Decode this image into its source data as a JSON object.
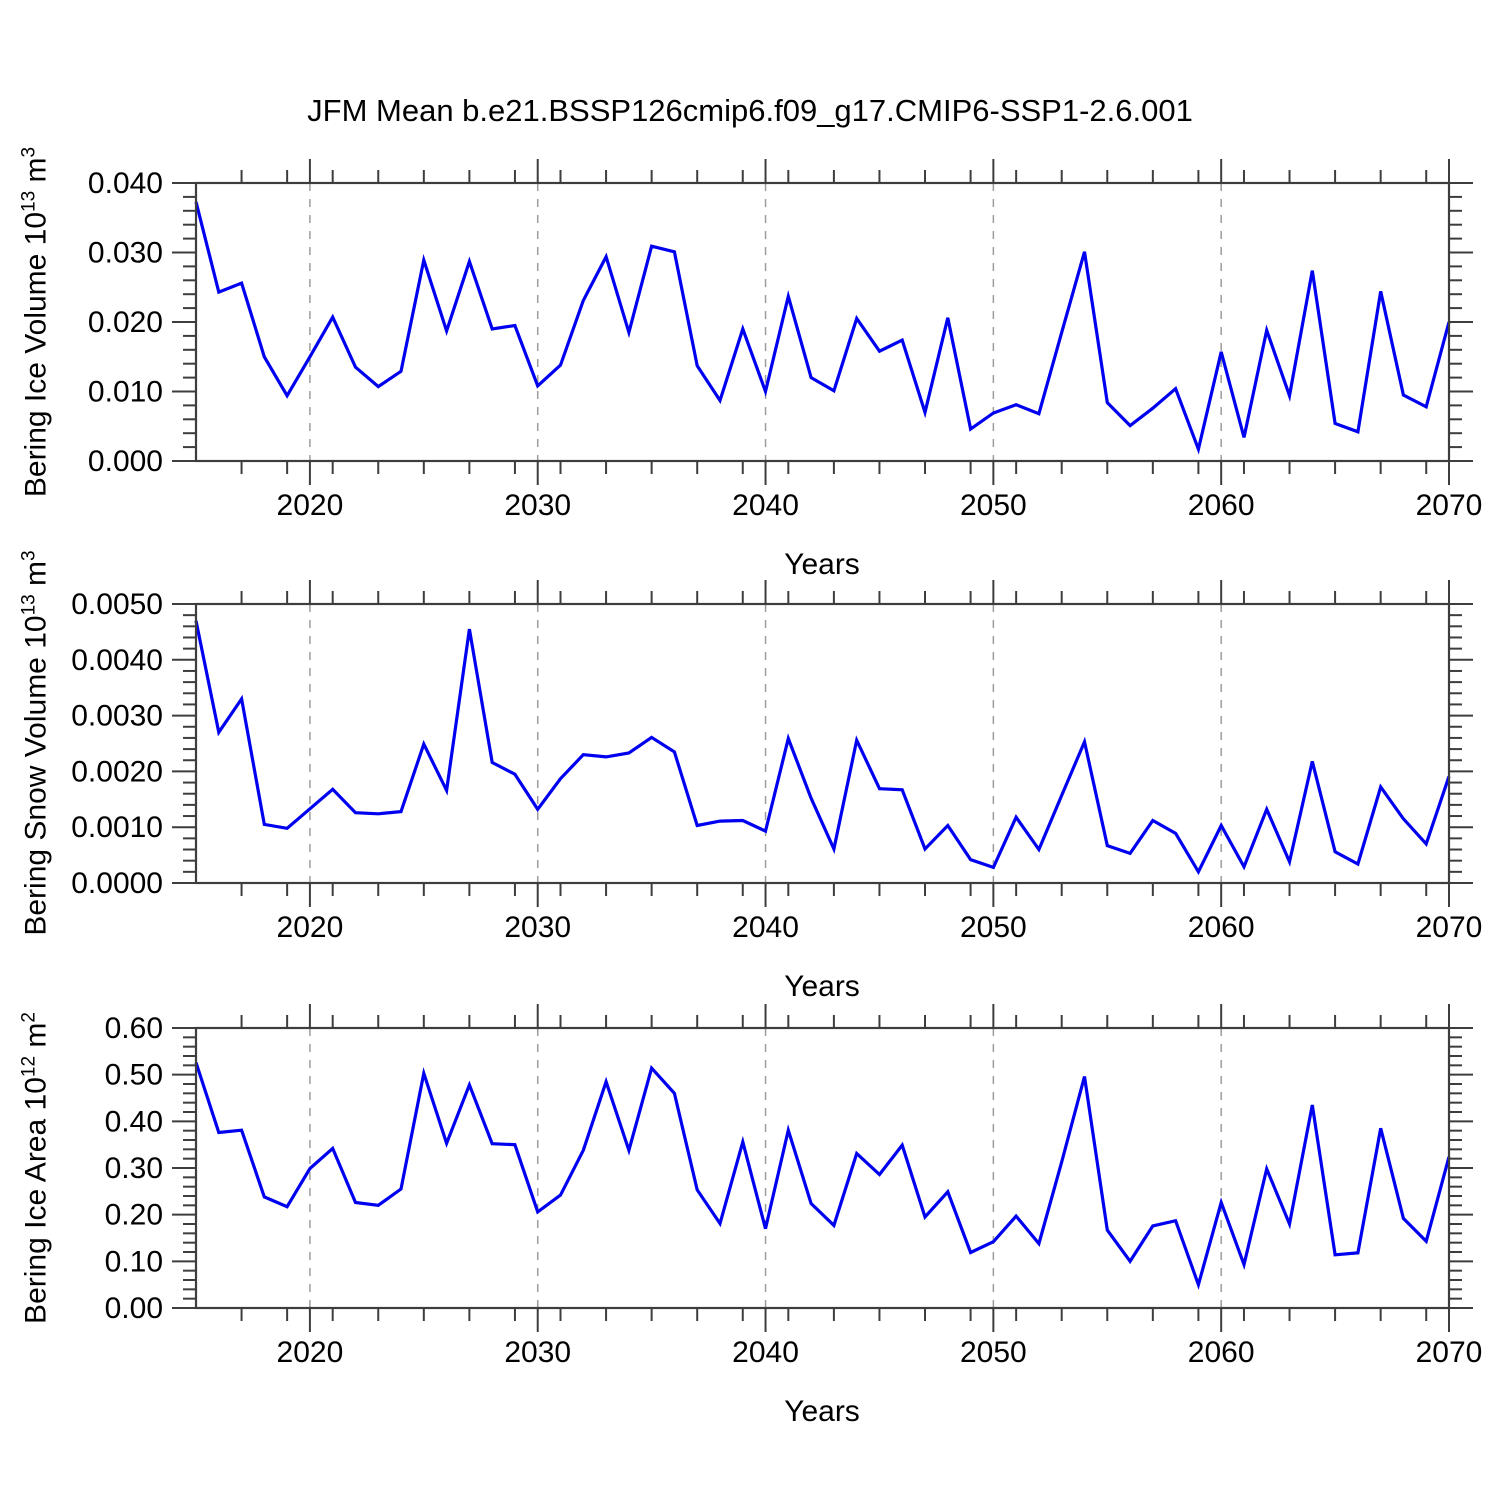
{
  "title": "JFM Mean b.e21.BSSP126cmip6.f09_g17.CMIP6-SSP1-2.6.001",
  "colors": {
    "line": "#0000F0",
    "axis": "#3d3d3d",
    "grid": "#9c9c9c",
    "background": "#ffffff",
    "text": "#000000"
  },
  "chart_data": [
    {
      "type": "line",
      "xlabel": "Years",
      "ylabel": "Bering Ice Volume 10^13 m^3",
      "ylabel_text": "Bering Ice Volume 10",
      "ylabel_exp": "13",
      "ylabel_unit": "m",
      "ylabel_unit_exp": "3",
      "xlim": [
        2015,
        2070
      ],
      "ylim": [
        0,
        0.04
      ],
      "yticks": [
        0.0,
        0.01,
        0.02,
        0.03,
        0.04
      ],
      "ytick_labels": [
        "0.000",
        "0.010",
        "0.020",
        "0.030",
        "0.040"
      ],
      "y_minor_step": 0.002,
      "xticks": [
        2020,
        2030,
        2040,
        2050,
        2060,
        2070
      ],
      "xtick_labels": [
        "2020",
        "2030",
        "2040",
        "2050",
        "2060",
        "2070"
      ],
      "x_minor_step": 2,
      "gridlines_x": [
        2020,
        2030,
        2040,
        2050,
        2060
      ],
      "grid": "dashed-vertical",
      "legend": "none",
      "x": [
        2015,
        2016,
        2017,
        2018,
        2019,
        2020,
        2021,
        2022,
        2023,
        2024,
        2025,
        2026,
        2027,
        2028,
        2029,
        2030,
        2031,
        2032,
        2033,
        2034,
        2035,
        2036,
        2037,
        2038,
        2039,
        2040,
        2041,
        2042,
        2043,
        2044,
        2045,
        2046,
        2047,
        2048,
        2049,
        2050,
        2051,
        2052,
        2053,
        2054,
        2055,
        2056,
        2057,
        2058,
        2059,
        2060,
        2061,
        2062,
        2063,
        2064,
        2065,
        2066,
        2067,
        2068,
        2069,
        2070
      ],
      "values": [
        0.0373,
        0.0243,
        0.0256,
        0.015,
        0.0094,
        0.015,
        0.0207,
        0.0135,
        0.0107,
        0.0129,
        0.0289,
        0.0187,
        0.0287,
        0.019,
        0.0195,
        0.0108,
        0.0138,
        0.0231,
        0.0294,
        0.0185,
        0.0309,
        0.0301,
        0.0137,
        0.0087,
        0.019,
        0.01,
        0.0237,
        0.012,
        0.0101,
        0.0205,
        0.0158,
        0.0174,
        0.007,
        0.0206,
        0.0046,
        0.0069,
        0.0081,
        0.0068,
        0.0185,
        0.0301,
        0.0084,
        0.0051,
        0.0076,
        0.0104,
        0.0017,
        0.0157,
        0.0034,
        0.0188,
        0.0094,
        0.0274,
        0.0054,
        0.0042,
        0.0244,
        0.0095,
        0.0078,
        0.02
      ]
    },
    {
      "type": "line",
      "xlabel": "Years",
      "ylabel": "Bering Snow Volume 10^13 m^3",
      "ylabel_text": "Bering Snow Volume 10",
      "ylabel_exp": "13",
      "ylabel_unit": "m",
      "ylabel_unit_exp": "3",
      "xlim": [
        2015,
        2070
      ],
      "ylim": [
        0,
        0.005
      ],
      "yticks": [
        0.0,
        0.001,
        0.002,
        0.003,
        0.004,
        0.005
      ],
      "ytick_labels": [
        "0.0000",
        "0.0010",
        "0.0020",
        "0.0030",
        "0.0040",
        "0.0050"
      ],
      "y_minor_step": 0.0002,
      "xticks": [
        2020,
        2030,
        2040,
        2050,
        2060,
        2070
      ],
      "xtick_labels": [
        "2020",
        "2030",
        "2040",
        "2050",
        "2060",
        "2070"
      ],
      "x_minor_step": 2,
      "gridlines_x": [
        2020,
        2030,
        2040,
        2050,
        2060
      ],
      "grid": "dashed-vertical",
      "legend": "none",
      "x": [
        2015,
        2016,
        2017,
        2018,
        2019,
        2020,
        2021,
        2022,
        2023,
        2024,
        2025,
        2026,
        2027,
        2028,
        2029,
        2030,
        2031,
        2032,
        2033,
        2034,
        2035,
        2036,
        2037,
        2038,
        2039,
        2040,
        2041,
        2042,
        2043,
        2044,
        2045,
        2046,
        2047,
        2048,
        2049,
        2050,
        2051,
        2052,
        2053,
        2054,
        2055,
        2056,
        2057,
        2058,
        2059,
        2060,
        2061,
        2062,
        2063,
        2064,
        2065,
        2066,
        2067,
        2068,
        2069,
        2070
      ],
      "values": [
        0.0047,
        0.0027,
        0.0033,
        0.00105,
        0.00098,
        0.00133,
        0.00168,
        0.00126,
        0.00124,
        0.00128,
        0.00249,
        0.00166,
        0.00455,
        0.00216,
        0.00195,
        0.00132,
        0.00187,
        0.0023,
        0.00226,
        0.00233,
        0.00261,
        0.00235,
        0.00103,
        0.00111,
        0.00112,
        0.00093,
        0.00259,
        0.00152,
        0.00061,
        0.00256,
        0.00169,
        0.00167,
        0.00061,
        0.00103,
        0.00042,
        0.00028,
        0.00118,
        0.0006,
        0.00157,
        0.00253,
        0.00067,
        0.00053,
        0.00112,
        0.00089,
        0.0002,
        0.00103,
        0.00029,
        0.00132,
        0.00038,
        0.00218,
        0.00056,
        0.00034,
        0.00172,
        0.00115,
        0.0007,
        0.00191
      ]
    },
    {
      "type": "line",
      "xlabel": "Years",
      "ylabel": "Bering Ice Area 10^12 m^2",
      "ylabel_text": "Bering Ice Area 10",
      "ylabel_exp": "12",
      "ylabel_unit": "m",
      "ylabel_unit_exp": "2",
      "xlim": [
        2015,
        2070
      ],
      "ylim": [
        0,
        0.6
      ],
      "yticks": [
        0.0,
        0.1,
        0.2,
        0.3,
        0.4,
        0.5,
        0.6
      ],
      "ytick_labels": [
        "0.00",
        "0.10",
        "0.20",
        "0.30",
        "0.40",
        "0.50",
        "0.60"
      ],
      "y_minor_step": 0.02,
      "xticks": [
        2020,
        2030,
        2040,
        2050,
        2060,
        2070
      ],
      "xtick_labels": [
        "2020",
        "2030",
        "2040",
        "2050",
        "2060",
        "2070"
      ],
      "x_minor_step": 2,
      "gridlines_x": [
        2020,
        2030,
        2040,
        2050,
        2060
      ],
      "grid": "dashed-vertical",
      "legend": "none",
      "x": [
        2015,
        2016,
        2017,
        2018,
        2019,
        2020,
        2021,
        2022,
        2023,
        2024,
        2025,
        2026,
        2027,
        2028,
        2029,
        2030,
        2031,
        2032,
        2033,
        2034,
        2035,
        2036,
        2037,
        2038,
        2039,
        2040,
        2041,
        2042,
        2043,
        2044,
        2045,
        2046,
        2047,
        2048,
        2049,
        2050,
        2051,
        2052,
        2053,
        2054,
        2055,
        2056,
        2057,
        2058,
        2059,
        2060,
        2061,
        2062,
        2063,
        2064,
        2065,
        2066,
        2067,
        2068,
        2069,
        2070
      ],
      "values": [
        0.526,
        0.376,
        0.381,
        0.238,
        0.217,
        0.299,
        0.342,
        0.226,
        0.22,
        0.255,
        0.503,
        0.353,
        0.478,
        0.352,
        0.35,
        0.206,
        0.242,
        0.338,
        0.485,
        0.338,
        0.514,
        0.46,
        0.253,
        0.181,
        0.356,
        0.17,
        0.381,
        0.224,
        0.177,
        0.331,
        0.286,
        0.349,
        0.195,
        0.249,
        0.119,
        0.142,
        0.197,
        0.138,
        0.313,
        0.496,
        0.167,
        0.1,
        0.176,
        0.187,
        0.05,
        0.226,
        0.093,
        0.298,
        0.18,
        0.435,
        0.114,
        0.118,
        0.385,
        0.192,
        0.143,
        0.324
      ]
    }
  ]
}
